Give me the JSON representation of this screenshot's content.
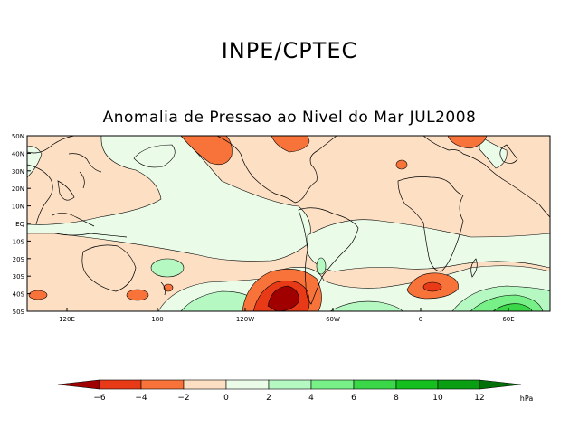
{
  "header": {
    "organization": "INPE/CPTEC",
    "map_title": "Anomalia de Pressao ao Nivel do Mar JUL2008"
  },
  "axes": {
    "lat_labels": [
      "50N",
      "40N",
      "30N",
      "20N",
      "10N",
      "EQ",
      "10S",
      "20S",
      "30S",
      "40S",
      "50S"
    ],
    "lon_labels": [
      "120E",
      "180",
      "120W",
      "60W",
      "0",
      "60E"
    ]
  },
  "colorbar": {
    "tick_labels": [
      "−6",
      "−4",
      "−2",
      "0",
      "2",
      "4",
      "6",
      "8",
      "10",
      "12"
    ],
    "unit": "hPa",
    "colors": [
      "#a00000",
      "#e83a16",
      "#f7733a",
      "#fcb27e",
      "#fde0c4",
      "#eafbe8",
      "#b6f8c2",
      "#78f088",
      "#3ad848",
      "#14bf1e",
      "#0a9f12",
      "#03700a"
    ]
  },
  "palette": {
    "neg6": "#a00000",
    "neg4": "#e83a16",
    "neg2": "#f7733a",
    "neg0": "#fde0c4",
    "pos0": "#eafbe8",
    "pos2": "#b6f8c2",
    "pos4": "#78f088",
    "pos6": "#3ad848"
  }
}
